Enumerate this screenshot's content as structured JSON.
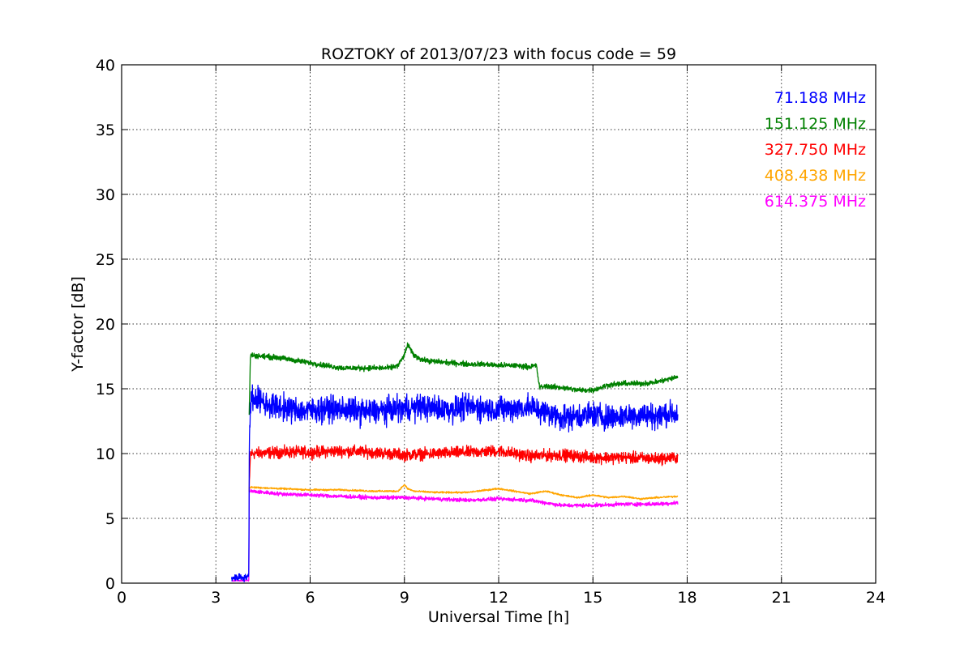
{
  "chart_data": {
    "type": "line",
    "title": "ROZTOKY of 2013/07/23 with focus code = 59",
    "xlabel": "Universal Time [h]",
    "ylabel": "Y-factor [dB]",
    "xlim": [
      0,
      24
    ],
    "ylim": [
      0,
      40
    ],
    "xticks": [
      0,
      3,
      6,
      9,
      12,
      15,
      18,
      21,
      24
    ],
    "yticks": [
      0,
      5,
      10,
      15,
      20,
      25,
      30,
      35,
      40
    ],
    "grid": true,
    "legend_position": "top-right",
    "series": [
      {
        "name": "71.188 MHz",
        "color": "#0000ff",
        "noise": 1.2,
        "x": [
          3.5,
          4.05,
          4.06,
          4.1,
          4.3,
          4.6,
          5.0,
          5.5,
          6.0,
          6.5,
          7.0,
          7.5,
          8.0,
          8.5,
          9.0,
          9.5,
          10.0,
          10.5,
          11.0,
          11.5,
          12.0,
          12.5,
          13.0,
          13.5,
          14.0,
          14.5,
          15.0,
          15.5,
          16.0,
          16.5,
          17.0,
          17.5,
          17.7
        ],
        "y": [
          0.4,
          0.5,
          10.0,
          14.2,
          14.3,
          13.8,
          13.6,
          13.4,
          13.3,
          13.5,
          13.4,
          13.3,
          13.2,
          13.4,
          13.5,
          13.6,
          13.5,
          13.4,
          13.6,
          13.5,
          13.4,
          13.5,
          13.6,
          13.2,
          12.8,
          12.9,
          13.0,
          12.8,
          12.9,
          13.0,
          12.9,
          13.1,
          13.0
        ]
      },
      {
        "name": "151.125 MHz",
        "color": "#008000",
        "noise": 0.25,
        "x": [
          4.06,
          4.1,
          4.5,
          5.0,
          5.5,
          6.0,
          6.5,
          7.0,
          7.5,
          8.0,
          8.5,
          8.8,
          9.0,
          9.1,
          9.3,
          9.6,
          10.0,
          10.5,
          11.0,
          11.5,
          12.0,
          12.5,
          13.0,
          13.2,
          13.3,
          13.5,
          14.0,
          14.5,
          15.0,
          15.5,
          16.0,
          16.5,
          17.0,
          17.5,
          17.7
        ],
        "y": [
          13.0,
          17.6,
          17.5,
          17.4,
          17.2,
          17.0,
          16.8,
          16.6,
          16.6,
          16.6,
          16.6,
          16.8,
          17.6,
          18.4,
          17.6,
          17.2,
          17.1,
          17.0,
          16.9,
          16.9,
          16.8,
          16.8,
          16.7,
          16.8,
          15.1,
          15.2,
          15.1,
          14.9,
          14.9,
          15.3,
          15.4,
          15.4,
          15.5,
          15.8,
          15.9
        ]
      },
      {
        "name": "327.750 MHz",
        "color": "#ff0000",
        "noise": 0.55,
        "x": [
          4.06,
          4.1,
          5.0,
          6.0,
          7.0,
          8.0,
          9.0,
          10.0,
          11.0,
          12.0,
          13.0,
          14.0,
          15.0,
          16.0,
          17.0,
          17.7
        ],
        "y": [
          7.0,
          10.0,
          10.1,
          10.1,
          10.2,
          10.1,
          9.9,
          10.0,
          10.1,
          10.2,
          9.8,
          9.9,
          9.7,
          9.7,
          9.6,
          9.7
        ]
      },
      {
        "name": "408.438 MHz",
        "color": "#ffa500",
        "noise": 0.08,
        "x": [
          4.06,
          4.1,
          5.0,
          6.0,
          7.0,
          8.0,
          8.8,
          9.0,
          9.1,
          9.3,
          10.0,
          11.0,
          12.0,
          12.5,
          13.0,
          13.5,
          14.0,
          14.5,
          15.0,
          15.5,
          16.0,
          16.5,
          17.0,
          17.7
        ],
        "y": [
          7.3,
          7.4,
          7.3,
          7.2,
          7.2,
          7.1,
          7.1,
          7.6,
          7.3,
          7.1,
          7.0,
          7.0,
          7.3,
          7.1,
          6.9,
          7.1,
          6.8,
          6.6,
          6.8,
          6.6,
          6.7,
          6.5,
          6.6,
          6.7
        ]
      },
      {
        "name": "614.375 MHz",
        "color": "#ff00ff",
        "noise": 0.18,
        "x": [
          3.5,
          4.05,
          4.06,
          4.1,
          5.0,
          6.0,
          7.0,
          8.0,
          9.0,
          10.0,
          11.0,
          12.0,
          13.0,
          14.0,
          15.0,
          16.0,
          17.0,
          17.7
        ],
        "y": [
          0.2,
          0.2,
          7.0,
          7.1,
          6.9,
          6.8,
          6.7,
          6.6,
          6.6,
          6.5,
          6.4,
          6.5,
          6.4,
          6.0,
          6.0,
          6.1,
          6.1,
          6.2
        ]
      }
    ]
  }
}
